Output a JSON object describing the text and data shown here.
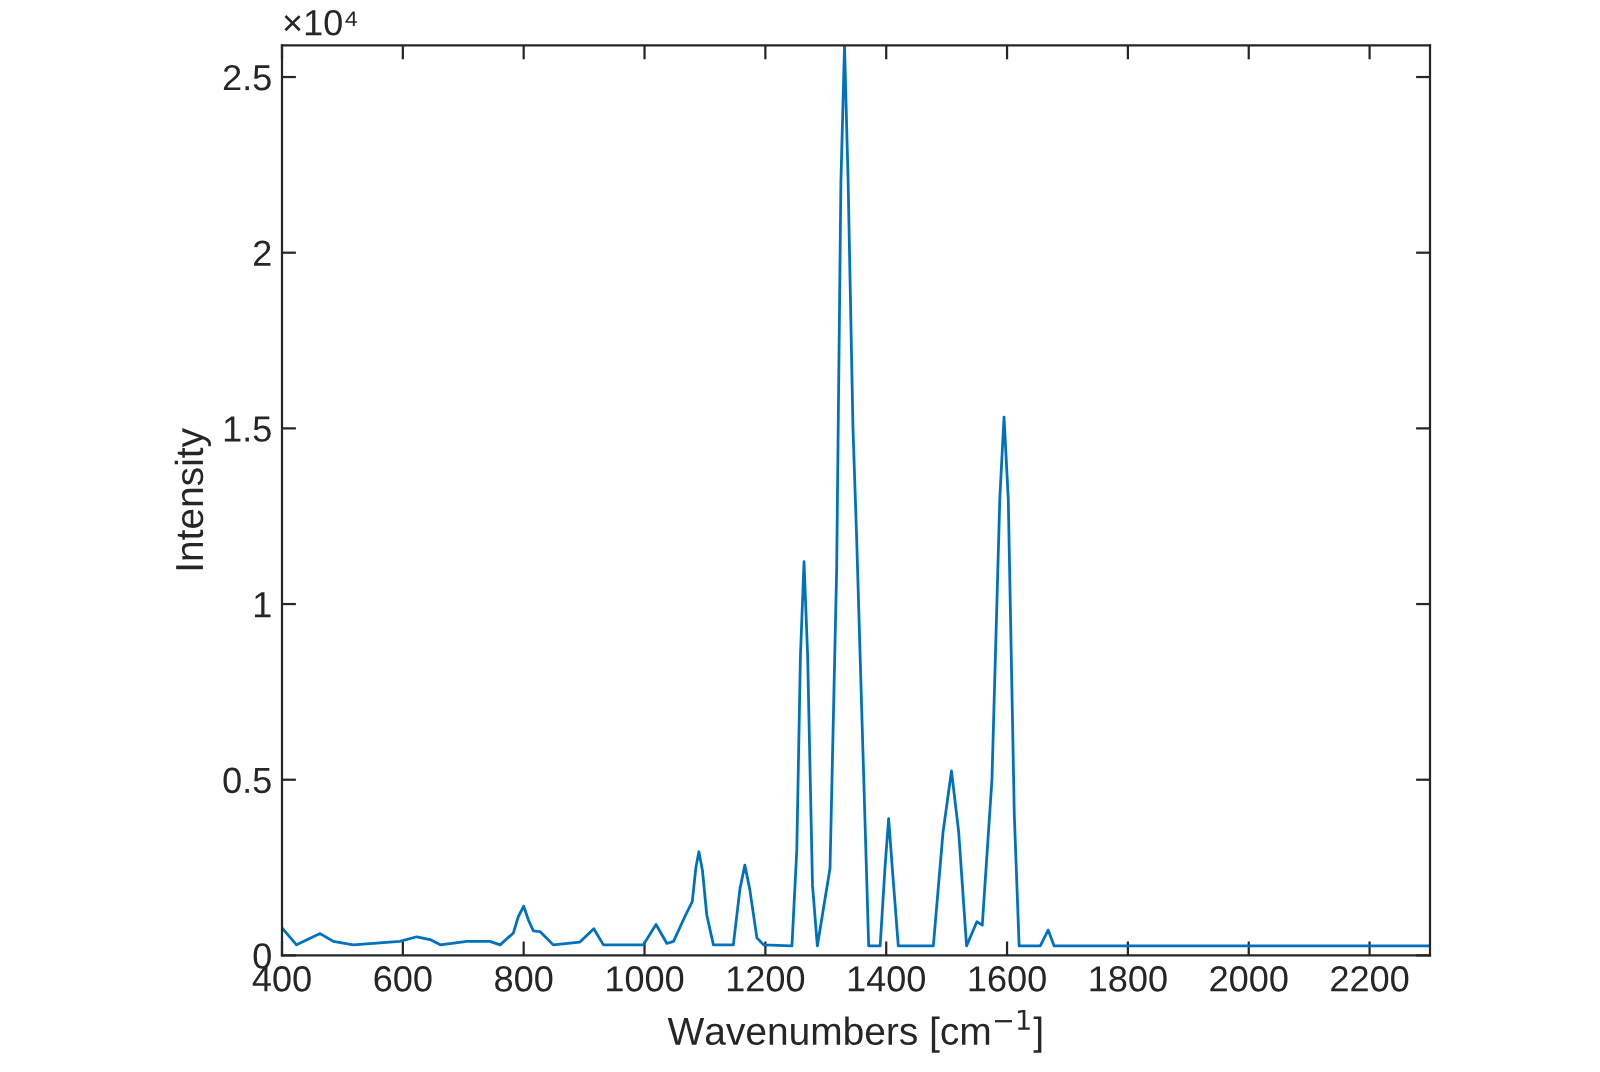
{
  "chart_data": {
    "type": "line",
    "xlabel": "Wavenumbers [cm$^{−1}$]",
    "ylabel": "Intensity",
    "annotations": [
      "×10⁴"
    ],
    "xlim": [
      400,
      2300
    ],
    "xticks": [
      400,
      600,
      800,
      1000,
      1200,
      1400,
      1600,
      1800,
      2000,
      2200
    ],
    "ylim": [
      0,
      2.59
    ],
    "yticks": [
      0,
      0.5,
      1,
      1.5,
      2,
      2.5
    ],
    "grid": false,
    "legend": false,
    "line_style": "solid",
    "marker": "none",
    "series": [
      {
        "color": "#0072bd",
        "x": [
          400,
          424,
          463,
          485,
          518,
          595,
          623,
          645,
          662,
          706,
          744,
          761,
          783,
          791,
          800,
          808,
          816,
          827,
          849,
          893,
          916,
          932,
          998,
          1019,
          1037,
          1048,
          1068,
          1079,
          1085,
          1090,
          1096,
          1103,
          1114,
          1147,
          1158,
          1166,
          1174,
          1186,
          1197,
          1244,
          1252,
          1258,
          1264,
          1270,
          1278,
          1286,
          1307,
          1318,
          1325,
          1331,
          1337,
          1345,
          1351,
          1371,
          1390,
          1398,
          1404,
          1410,
          1420,
          1478,
          1494,
          1508,
          1520,
          1533,
          1550,
          1559,
          1575,
          1588,
          1595,
          1602,
          1612,
          1620,
          1655,
          1668,
          1678,
          2300
        ],
        "values": [
          0.078,
          0.03,
          0.062,
          0.04,
          0.03,
          0.04,
          0.053,
          0.045,
          0.03,
          0.04,
          0.04,
          0.03,
          0.064,
          0.11,
          0.14,
          0.1,
          0.07,
          0.068,
          0.03,
          0.038,
          0.076,
          0.03,
          0.03,
          0.088,
          0.034,
          0.04,
          0.115,
          0.153,
          0.25,
          0.295,
          0.24,
          0.115,
          0.03,
          0.03,
          0.19,
          0.257,
          0.19,
          0.05,
          0.03,
          0.027,
          0.3,
          0.85,
          1.121,
          0.85,
          0.2,
          0.027,
          0.248,
          1.1,
          2.2,
          2.59,
          2.2,
          1.5,
          1.192,
          0.027,
          0.027,
          0.25,
          0.389,
          0.25,
          0.027,
          0.027,
          0.35,
          0.525,
          0.35,
          0.027,
          0.096,
          0.086,
          0.5,
          1.3,
          1.532,
          1.3,
          0.4,
          0.027,
          0.027,
          0.072,
          0.027,
          0.027
        ]
      }
    ]
  }
}
